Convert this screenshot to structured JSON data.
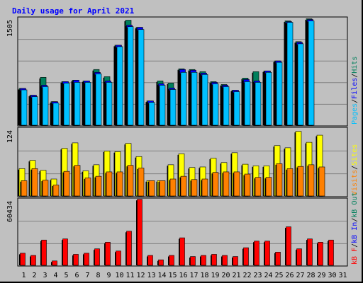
{
  "title": "Daily usage for April 2021",
  "colors": {
    "title": "#0000ff",
    "hits": "#00805c",
    "files": "#0000ff",
    "pages": "#00c0ff",
    "visits": "#ffff00",
    "sites": "#ff8000",
    "kb_f": "#ff0000",
    "kb_in": "#0000ff",
    "kb_out": "#00805c",
    "weekend_label": "#00805c",
    "panel_bg": "#c0c0c0",
    "grid": "#808080"
  },
  "panels": {
    "top": {
      "max_label": "1505",
      "legend": [
        "Pages",
        "/",
        "Files",
        "/",
        "Hits"
      ]
    },
    "middle": {
      "max_label": "124",
      "legend": [
        "Visits",
        "/",
        "Sites"
      ]
    },
    "bottom": {
      "max_label": "60434",
      "legend": [
        "kB F",
        "/",
        "kB In",
        "/",
        "kB Out"
      ]
    }
  },
  "chart_data": [
    {
      "type": "bar",
      "panel": "top",
      "categories": [
        "1",
        "2",
        "3",
        "4",
        "5",
        "6",
        "7",
        "8",
        "9",
        "10",
        "11",
        "12",
        "13",
        "14",
        "15",
        "16",
        "17",
        "18",
        "19",
        "20",
        "21",
        "22",
        "23",
        "24",
        "25",
        "26",
        "27",
        "28",
        "29",
        "30",
        "31"
      ],
      "weekend_days": [
        "3",
        "4",
        "10",
        "11",
        "17",
        "18",
        "24",
        "25",
        "31"
      ],
      "ylim": [
        0,
        1505
      ],
      "series": [
        {
          "name": "Hits",
          "values": [
            515,
            420,
            670,
            330,
            610,
            630,
            620,
            780,
            680,
            1120,
            1470,
            1370,
            340,
            620,
            590,
            790,
            780,
            750,
            610,
            570,
            490,
            660,
            750,
            760,
            900,
            1460,
            1170,
            1490,
            0,
            0,
            0
          ]
        },
        {
          "name": "Files",
          "values": [
            515,
            420,
            560,
            330,
            610,
            630,
            620,
            740,
            620,
            1120,
            1400,
            1370,
            340,
            580,
            520,
            780,
            770,
            730,
            600,
            560,
            490,
            640,
            620,
            760,
            900,
            1450,
            1160,
            1480,
            0,
            0,
            0
          ]
        },
        {
          "name": "Pages",
          "values": [
            495,
            400,
            540,
            310,
            590,
            600,
            600,
            720,
            600,
            1100,
            1380,
            1340,
            320,
            560,
            500,
            740,
            740,
            710,
            580,
            540,
            470,
            610,
            600,
            740,
            880,
            1440,
            1140,
            1460,
            0,
            0,
            0
          ]
        }
      ]
    },
    {
      "type": "bar",
      "panel": "middle",
      "categories": [
        "1",
        "2",
        "3",
        "4",
        "5",
        "6",
        "7",
        "8",
        "9",
        "10",
        "11",
        "12",
        "13",
        "14",
        "15",
        "16",
        "17",
        "18",
        "19",
        "20",
        "21",
        "22",
        "23",
        "24",
        "25",
        "26",
        "27",
        "28",
        "29",
        "30",
        "31"
      ],
      "ylim": [
        0,
        124
      ],
      "series": [
        {
          "name": "Visits",
          "values": [
            50,
            65,
            47,
            31,
            87,
            97,
            46,
            57,
            82,
            81,
            96,
            72,
            28,
            28,
            57,
            77,
            52,
            53,
            69,
            61,
            79,
            58,
            55,
            55,
            92,
            88,
            118,
            98,
            111,
            0,
            0
          ]
        },
        {
          "name": "Sites",
          "values": [
            28,
            50,
            29,
            20,
            45,
            56,
            33,
            36,
            44,
            44,
            56,
            51,
            28,
            28,
            31,
            36,
            30,
            31,
            43,
            44,
            44,
            40,
            34,
            34,
            59,
            50,
            54,
            57,
            53,
            0,
            0
          ]
        }
      ]
    },
    {
      "type": "bar",
      "panel": "bottom",
      "categories": [
        "1",
        "2",
        "3",
        "4",
        "5",
        "6",
        "7",
        "8",
        "9",
        "10",
        "11",
        "12",
        "13",
        "14",
        "15",
        "16",
        "17",
        "18",
        "19",
        "20",
        "21",
        "22",
        "23",
        "24",
        "25",
        "26",
        "27",
        "28",
        "29",
        "30",
        "31"
      ],
      "ylim": [
        0,
        60434
      ],
      "series": [
        {
          "name": "kB F",
          "values": [
            11000,
            9000,
            23000,
            4000,
            24000,
            10000,
            11000,
            15000,
            21000,
            13000,
            31000,
            60000,
            9000,
            5000,
            9000,
            25000,
            8000,
            9000,
            10000,
            9000,
            8000,
            16000,
            22000,
            22000,
            12000,
            35000,
            15000,
            24000,
            21000,
            23000,
            0
          ]
        }
      ]
    }
  ]
}
